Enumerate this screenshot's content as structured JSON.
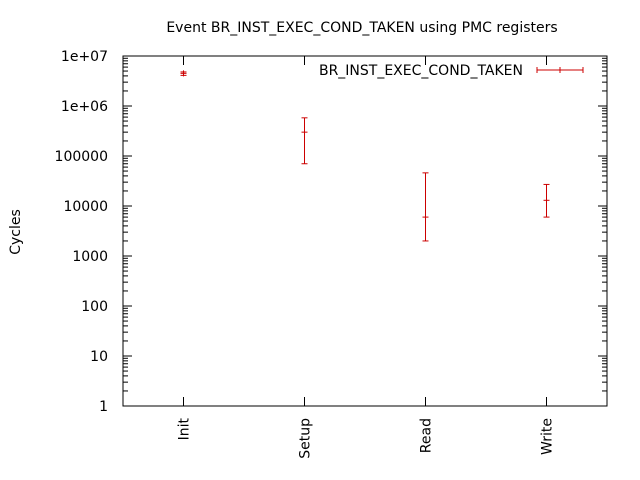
{
  "chart_data": {
    "type": "errorbar",
    "title": "Event BR_INST_EXEC_COND_TAKEN using PMC registers",
    "xlabel": "",
    "ylabel": "Cycles",
    "yscale": "log",
    "ylim": [
      1,
      10000000
    ],
    "y_tick_labels": [
      "1",
      "10",
      "100",
      "1000",
      "10000",
      "100000",
      "1e+06",
      "1e+07"
    ],
    "categories": [
      "Init",
      "Setup",
      "Read",
      "Write"
    ],
    "series": [
      {
        "name": "BR_INST_EXEC_COND_TAKEN",
        "color": "#cc0000",
        "values": [
          4500000,
          300000,
          6000,
          13000
        ],
        "lower": [
          4100000,
          70000,
          2000,
          6000
        ],
        "upper": [
          4800000,
          580000,
          46000,
          27000
        ]
      }
    ],
    "legend": "top-right",
    "grid": false
  }
}
